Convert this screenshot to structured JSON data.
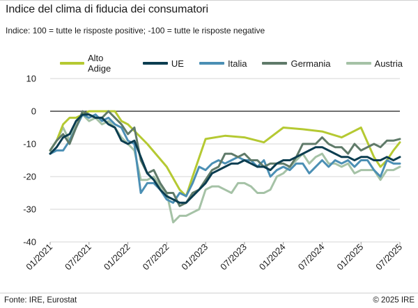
{
  "title": "Indice del clima di fiducia dei consumatori",
  "subtitle": "Indice: 100 = tutte le risposte positive; -100 =  tutte le risposte negative",
  "footer": {
    "source": "Fonte: IRE, Eurostat",
    "copyright": "© 2025 IRE"
  },
  "chart_data": {
    "type": "line",
    "title": "Indice del clima di fiducia dei consumatori",
    "ylim": [
      -40,
      10
    ],
    "yticks": [
      10,
      0,
      -10,
      -20,
      -30,
      -40
    ],
    "xtick_labels": [
      "01/2021",
      "07/2021",
      "01/2022",
      "07/2022",
      "01/2023",
      "07/2023",
      "01/2024",
      "07/2024",
      "01/2025",
      "07/2025"
    ],
    "xtick_months": [
      0,
      6,
      12,
      18,
      24,
      30,
      36,
      42,
      48,
      54
    ],
    "x_range_months": [
      0,
      54
    ],
    "series": [
      {
        "name": "Alto Adige",
        "color": "#b5c932",
        "width": 3,
        "points": [
          [
            0,
            -12
          ],
          [
            1,
            -9
          ],
          [
            2,
            -4
          ],
          [
            3,
            -2
          ],
          [
            4,
            -2
          ],
          [
            5,
            -1
          ],
          [
            6,
            0
          ],
          [
            7,
            0
          ],
          [
            8,
            0
          ],
          [
            9,
            0
          ],
          [
            10,
            0
          ],
          [
            11,
            -3
          ],
          [
            12,
            -4
          ],
          [
            15,
            -10
          ],
          [
            18,
            -17
          ],
          [
            20,
            -24
          ],
          [
            21,
            -26
          ],
          [
            22,
            -20
          ],
          [
            24,
            -8.5
          ],
          [
            27,
            -7.5
          ],
          [
            30,
            -8
          ],
          [
            33,
            -9.5
          ],
          [
            36,
            -5
          ],
          [
            39,
            -5.5
          ],
          [
            42,
            -6.2
          ],
          [
            45,
            -8
          ],
          [
            48,
            -5
          ],
          [
            50,
            -14
          ],
          [
            51,
            -17
          ],
          [
            52,
            -15
          ],
          [
            53,
            -12
          ],
          [
            54,
            -9.5
          ]
        ]
      },
      {
        "name": "UE",
        "color": "#0b3d50",
        "width": 3,
        "points": [
          [
            0,
            -13
          ],
          [
            1,
            -11
          ],
          [
            2,
            -8
          ],
          [
            3,
            -7
          ],
          [
            4,
            -3
          ],
          [
            5,
            -1
          ],
          [
            6,
            -1
          ],
          [
            7,
            -2
          ],
          [
            8,
            -2
          ],
          [
            9,
            -4
          ],
          [
            10,
            -5
          ],
          [
            11,
            -9
          ],
          [
            12,
            -10
          ],
          [
            13,
            -9
          ],
          [
            14,
            -14
          ],
          [
            15,
            -19
          ],
          [
            16,
            -21
          ],
          [
            17,
            -24
          ],
          [
            18,
            -26
          ],
          [
            19,
            -27
          ],
          [
            20,
            -28
          ],
          [
            21,
            -28
          ],
          [
            22,
            -26
          ],
          [
            23,
            -24
          ],
          [
            24,
            -22
          ],
          [
            25,
            -19
          ],
          [
            26,
            -18
          ],
          [
            27,
            -17
          ],
          [
            28,
            -16
          ],
          [
            29,
            -16
          ],
          [
            30,
            -15
          ],
          [
            31,
            -16
          ],
          [
            32,
            -17
          ],
          [
            33,
            -17
          ],
          [
            34,
            -18
          ],
          [
            35,
            -16
          ],
          [
            36,
            -15
          ],
          [
            37,
            -15
          ],
          [
            38,
            -14
          ],
          [
            39,
            -13
          ],
          [
            40,
            -12
          ],
          [
            41,
            -11
          ],
          [
            42,
            -11
          ],
          [
            43,
            -12
          ],
          [
            44,
            -13
          ],
          [
            45,
            -14
          ],
          [
            46,
            -14
          ],
          [
            47,
            -15
          ],
          [
            48,
            -14
          ],
          [
            49,
            -14
          ],
          [
            50,
            -15
          ],
          [
            51,
            -15
          ],
          [
            52,
            -14
          ],
          [
            53,
            -15
          ],
          [
            54,
            -14
          ]
        ]
      },
      {
        "name": "Italia",
        "color": "#4b8fb4",
        "width": 3,
        "points": [
          [
            0,
            -13
          ],
          [
            1,
            -12
          ],
          [
            2,
            -12
          ],
          [
            3,
            -9
          ],
          [
            4,
            -5
          ],
          [
            5,
            -1
          ],
          [
            6,
            -2
          ],
          [
            7,
            -1
          ],
          [
            8,
            -3
          ],
          [
            9,
            -2
          ],
          [
            10,
            -4
          ],
          [
            11,
            -5
          ],
          [
            12,
            -9
          ],
          [
            13,
            -10
          ],
          [
            14,
            -25
          ],
          [
            15,
            -22
          ],
          [
            16,
            -22
          ],
          [
            17,
            -24
          ],
          [
            18,
            -27
          ],
          [
            19,
            -28
          ],
          [
            20,
            -25
          ],
          [
            21,
            -26
          ],
          [
            22,
            -22
          ],
          [
            23,
            -17
          ],
          [
            24,
            -18
          ],
          [
            25,
            -16
          ],
          [
            26,
            -15
          ],
          [
            27,
            -16
          ],
          [
            28,
            -15
          ],
          [
            29,
            -14
          ],
          [
            30,
            -15
          ],
          [
            31,
            -15
          ],
          [
            32,
            -17
          ],
          [
            33,
            -15
          ],
          [
            34,
            -20
          ],
          [
            35,
            -18
          ],
          [
            36,
            -17
          ],
          [
            37,
            -18
          ],
          [
            38,
            -16
          ],
          [
            39,
            -16
          ],
          [
            40,
            -19
          ],
          [
            41,
            -17
          ],
          [
            42,
            -15
          ],
          [
            43,
            -17
          ],
          [
            44,
            -15
          ],
          [
            45,
            -16
          ],
          [
            46,
            -15
          ],
          [
            47,
            -17
          ],
          [
            48,
            -15
          ],
          [
            49,
            -15
          ],
          [
            50,
            -18
          ],
          [
            51,
            -20
          ],
          [
            52,
            -15
          ],
          [
            53,
            -16
          ],
          [
            54,
            -16
          ]
        ]
      },
      {
        "name": "Germania",
        "color": "#5f7a69",
        "width": 3,
        "points": [
          [
            0,
            -12
          ],
          [
            1,
            -9
          ],
          [
            2,
            -7
          ],
          [
            3,
            -10
          ],
          [
            4,
            -5
          ],
          [
            5,
            0
          ],
          [
            6,
            -1
          ],
          [
            7,
            -2
          ],
          [
            8,
            -2
          ],
          [
            9,
            0
          ],
          [
            10,
            -2
          ],
          [
            11,
            -4
          ],
          [
            12,
            -7
          ],
          [
            13,
            -5
          ],
          [
            14,
            -15
          ],
          [
            15,
            -19
          ],
          [
            16,
            -18
          ],
          [
            17,
            -22
          ],
          [
            18,
            -25
          ],
          [
            19,
            -25
          ],
          [
            20,
            -29
          ],
          [
            21,
            -28
          ],
          [
            22,
            -25
          ],
          [
            23,
            -24
          ],
          [
            24,
            -21
          ],
          [
            25,
            -18
          ],
          [
            26,
            -17
          ],
          [
            27,
            -13
          ],
          [
            28,
            -13
          ],
          [
            29,
            -14
          ],
          [
            30,
            -13
          ],
          [
            31,
            -15
          ],
          [
            32,
            -15
          ],
          [
            33,
            -17
          ],
          [
            34,
            -16
          ],
          [
            35,
            -16
          ],
          [
            36,
            -16
          ],
          [
            37,
            -17
          ],
          [
            38,
            -14
          ],
          [
            39,
            -10
          ],
          [
            40,
            -10
          ],
          [
            41,
            -10
          ],
          [
            42,
            -8
          ],
          [
            43,
            -10
          ],
          [
            44,
            -11
          ],
          [
            45,
            -11
          ],
          [
            46,
            -13
          ],
          [
            47,
            -10
          ],
          [
            48,
            -12
          ],
          [
            49,
            -11
          ],
          [
            50,
            -10
          ],
          [
            51,
            -11
          ],
          [
            52,
            -9
          ],
          [
            53,
            -9
          ],
          [
            54,
            -8.5
          ]
        ]
      },
      {
        "name": "Austria",
        "color": "#a5c2a6",
        "width": 3,
        "points": [
          [
            0,
            -12
          ],
          [
            1,
            -9
          ],
          [
            2,
            -5
          ],
          [
            3,
            -9
          ],
          [
            4,
            -3
          ],
          [
            5,
            -1
          ],
          [
            6,
            -3
          ],
          [
            7,
            -2
          ],
          [
            8,
            -4
          ],
          [
            9,
            -3
          ],
          [
            10,
            -5
          ],
          [
            11,
            -8
          ],
          [
            12,
            -10
          ],
          [
            13,
            -12
          ],
          [
            14,
            -21
          ],
          [
            15,
            -21
          ],
          [
            16,
            -20
          ],
          [
            17,
            -23
          ],
          [
            18,
            -25
          ],
          [
            19,
            -34
          ],
          [
            20,
            -32
          ],
          [
            21,
            -32
          ],
          [
            22,
            -31
          ],
          [
            23,
            -30
          ],
          [
            24,
            -24
          ],
          [
            25,
            -23
          ],
          [
            26,
            -23
          ],
          [
            27,
            -24
          ],
          [
            28,
            -25
          ],
          [
            29,
            -22
          ],
          [
            30,
            -22
          ],
          [
            31,
            -23
          ],
          [
            32,
            -25
          ],
          [
            33,
            -25
          ],
          [
            34,
            -24
          ],
          [
            35,
            -20
          ],
          [
            36,
            -19
          ],
          [
            37,
            -17
          ],
          [
            38,
            -15
          ],
          [
            39,
            -13
          ],
          [
            40,
            -16
          ],
          [
            41,
            -14
          ],
          [
            42,
            -13
          ],
          [
            43,
            -16
          ],
          [
            44,
            -16
          ],
          [
            45,
            -17
          ],
          [
            46,
            -16
          ],
          [
            47,
            -19
          ],
          [
            48,
            -18
          ],
          [
            49,
            -18
          ],
          [
            50,
            -18
          ],
          [
            51,
            -21
          ],
          [
            52,
            -18
          ],
          [
            53,
            -18
          ],
          [
            54,
            -17
          ]
        ]
      }
    ]
  }
}
